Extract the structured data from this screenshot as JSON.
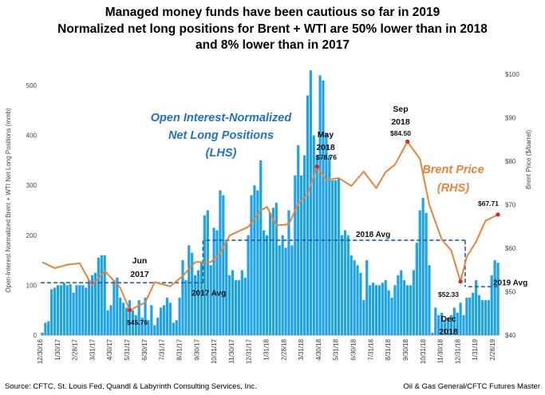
{
  "title_lines": [
    "Managed money funds have been cautious so far in 2019",
    "Normalized net long positions for Brent + WTI are 50% lower than in 2018",
    "and 8% lower than in 2017"
  ],
  "footer": {
    "source": "Source:  CFTC, St. Louis Fed, Quandl & Labyrinth Consulting Services, Inc.",
    "credit": "Oil & Gas General/CFTC Futures Master"
  },
  "chart_data": {
    "type": "bar",
    "title": "Managed money funds have been cautious so far in 2019",
    "ylabel": "Open-Interest Normalized  Brent + WTI  Net Long Positions  (mmb)",
    "y2label": "Brent  Price  ($/barrel)",
    "ylim": [
      0,
      540
    ],
    "y2lim": [
      40,
      102
    ],
    "y_ticks": [
      0,
      100,
      200,
      300,
      400,
      500
    ],
    "y2_ticks": [
      "$40",
      "$50",
      "$60",
      "$70",
      "$80",
      "$90",
      "$100"
    ],
    "x_ticks": [
      "12/30/16",
      "1/30/17",
      "2/28/17",
      "3/31/17",
      "4/30/17",
      "5/31/17",
      "6/30/17",
      "7/31/17",
      "8/31/17",
      "9/30/17",
      "10/31/17",
      "11/30/17",
      "12/31/17",
      "1/31/18",
      "2/28/18",
      "3/31/18",
      "4/30/18",
      "5/31/18",
      "6/30/18",
      "7/31/18",
      "8/31/18",
      "9/30/18",
      "10/31/18",
      "11/30/18",
      "12/31/18",
      "1/31/19",
      "2/28/19"
    ],
    "series": [
      {
        "name": "Open Interest-Normalized Net Long Positions (LHS)",
        "color": "#1ea3e6",
        "values": [
          5,
          25,
          28,
          92,
          95,
          100,
          100,
          105,
          100,
          102,
          85,
          100,
          100,
          100,
          95,
          110,
          120,
          125,
          155,
          160,
          160,
          50,
          60,
          110,
          115,
          75,
          65,
          55,
          70,
          50,
          40,
          70,
          35,
          75,
          30,
          60,
          20,
          35,
          55,
          60,
          75,
          65,
          25,
          30,
          75,
          150,
          110,
          180,
          165,
          120,
          130,
          145,
          240,
          250,
          140,
          215,
          210,
          290,
          280,
          190,
          120,
          130,
          110,
          110,
          130,
          115,
          200,
          280,
          300,
          290,
          350,
          210,
          200,
          245,
          255,
          265,
          180,
          200,
          175,
          250,
          180,
          320,
          380,
          320,
          360,
          480,
          530,
          400,
          360,
          520,
          510,
          405,
          360,
          310,
          310,
          315,
          200,
          210,
          200,
          160,
          150,
          140,
          125,
          70,
          150,
          100,
          105,
          100,
          100,
          105,
          110,
          90,
          75,
          100,
          120,
          130,
          110,
          100,
          100,
          130,
          185,
          250,
          275,
          245,
          140,
          5,
          55,
          40,
          45,
          30,
          35,
          40,
          55,
          45,
          65,
          40,
          75,
          75,
          85,
          110,
          80,
          70,
          70,
          70,
          120,
          150,
          145
        ],
        "annotations": [
          {
            "text": "Open Interest-Normalized",
            "color": "#1f72c4"
          },
          {
            "text": "Net Long Positions",
            "color": "#1f72c4"
          },
          {
            "text": "(LHS)",
            "color": "#1f72c4"
          }
        ]
      },
      {
        "name": "Brent Price (RHS)",
        "color": "#e8833a",
        "x_index": [
          0,
          4,
          8,
          12,
          16,
          20,
          25,
          28,
          33,
          36,
          41,
          45,
          49,
          54,
          57,
          60,
          66,
          70,
          72,
          75,
          79,
          82,
          85,
          88,
          91,
          95,
          99,
          103,
          107,
          110,
          113,
          117,
          121,
          124,
          128,
          131,
          134,
          136,
          139,
          142,
          146
        ],
        "values": [
          56.8,
          55.4,
          56.2,
          56.5,
          51.4,
          54.8,
          50.9,
          45.76,
          47.5,
          52.2,
          51.2,
          53.6,
          56.8,
          56.8,
          58.8,
          62.9,
          64.9,
          68.7,
          69.5,
          65.2,
          65.5,
          70.2,
          72.4,
          78.76,
          75.7,
          76.1,
          74.3,
          77.6,
          73.8,
          77.5,
          79.2,
          84.5,
          80.5,
          70.0,
          62.0,
          59.5,
          52.33,
          58.0,
          61.5,
          66.3,
          67.71
        ],
        "annotations": [
          {
            "text": "Brent Price",
            "color": "#e8833a"
          },
          {
            "text": "(RHS)",
            "color": "#e8833a"
          }
        ]
      }
    ],
    "point_labels": [
      {
        "label_lines": [
          "Jun",
          "2017"
        ],
        "price": "$45.76",
        "x_index": 28,
        "value": 45.76
      },
      {
        "label_lines": [
          "May",
          "2018"
        ],
        "price": "$78.76",
        "x_index": 88,
        "value": 78.76
      },
      {
        "label_lines": [
          "Sep",
          "2018"
        ],
        "price": "$84.50",
        "x_index": 117,
        "value": 84.5
      },
      {
        "label_lines": [
          "Dec",
          "2018"
        ],
        "price": "$52.33",
        "x_index": 134,
        "value": 52.33
      },
      {
        "label_lines": [],
        "price": "$67.71",
        "x_index": 146,
        "value": 67.71
      }
    ],
    "averages": [
      {
        "label": "2017 Avg",
        "value": 105,
        "from_index": 0,
        "to_index": 52
      },
      {
        "label": "2018 Avg",
        "value": 190,
        "from_index": 53,
        "to_index": 136
      },
      {
        "label": "2019 Avg",
        "value": 97,
        "from_index": 137,
        "to_index": 147
      }
    ],
    "grid": false,
    "legend": "none"
  }
}
